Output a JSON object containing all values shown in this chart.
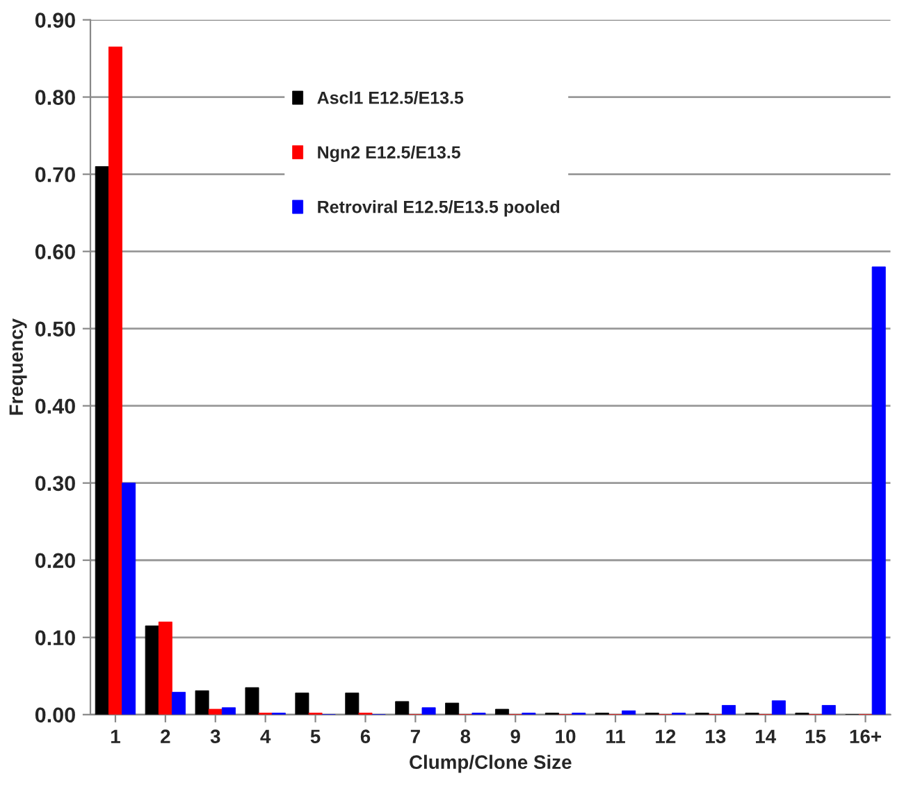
{
  "chart_data": {
    "type": "bar",
    "xlabel": "Clump/Clone Size",
    "ylabel": "Frequency",
    "categories": [
      "1",
      "2",
      "3",
      "4",
      "5",
      "6",
      "7",
      "8",
      "9",
      "10",
      "11",
      "12",
      "13",
      "14",
      "15",
      "16+"
    ],
    "series": [
      {
        "name": "Ascl1 E12.5/E13.5",
        "color": "#000000",
        "values": [
          0.71,
          0.115,
          0.031,
          0.035,
          0.028,
          0.028,
          0.017,
          0.015,
          0.007,
          0.002,
          0.002,
          0.002,
          0.002,
          0.002,
          0.002,
          0
        ]
      },
      {
        "name": "Ngn2 E12.5/E13.5",
        "color": "#ff0000",
        "values": [
          0.865,
          0.12,
          0.007,
          0.002,
          0.002,
          0.002,
          0,
          0,
          0,
          0,
          0,
          0,
          0,
          0,
          0,
          0
        ]
      },
      {
        "name": "Retroviral E12.5/E13.5 pooled",
        "color": "#0000ff",
        "values": [
          0.3,
          0.029,
          0.009,
          0.002,
          0,
          0,
          0.009,
          0.002,
          0.002,
          0.002,
          0.005,
          0.002,
          0.012,
          0.018,
          0.012,
          0.58
        ]
      }
    ],
    "ylim": [
      0,
      0.9
    ],
    "yticks": [
      {
        "value": 0,
        "label": "0.00"
      },
      {
        "value": 0.1,
        "label": "0.10"
      },
      {
        "value": 0.2,
        "label": "0.20"
      },
      {
        "value": 0.3,
        "label": "0.30"
      },
      {
        "value": 0.4,
        "label": "0.40"
      },
      {
        "value": 0.5,
        "label": "0.50"
      },
      {
        "value": 0.6,
        "label": "0.60"
      },
      {
        "value": 0.7,
        "label": "0.70"
      },
      {
        "value": 0.8,
        "label": "0.80"
      },
      {
        "value": 0.9,
        "label": "0.90"
      }
    ],
    "grid": "y",
    "legend": "top"
  }
}
